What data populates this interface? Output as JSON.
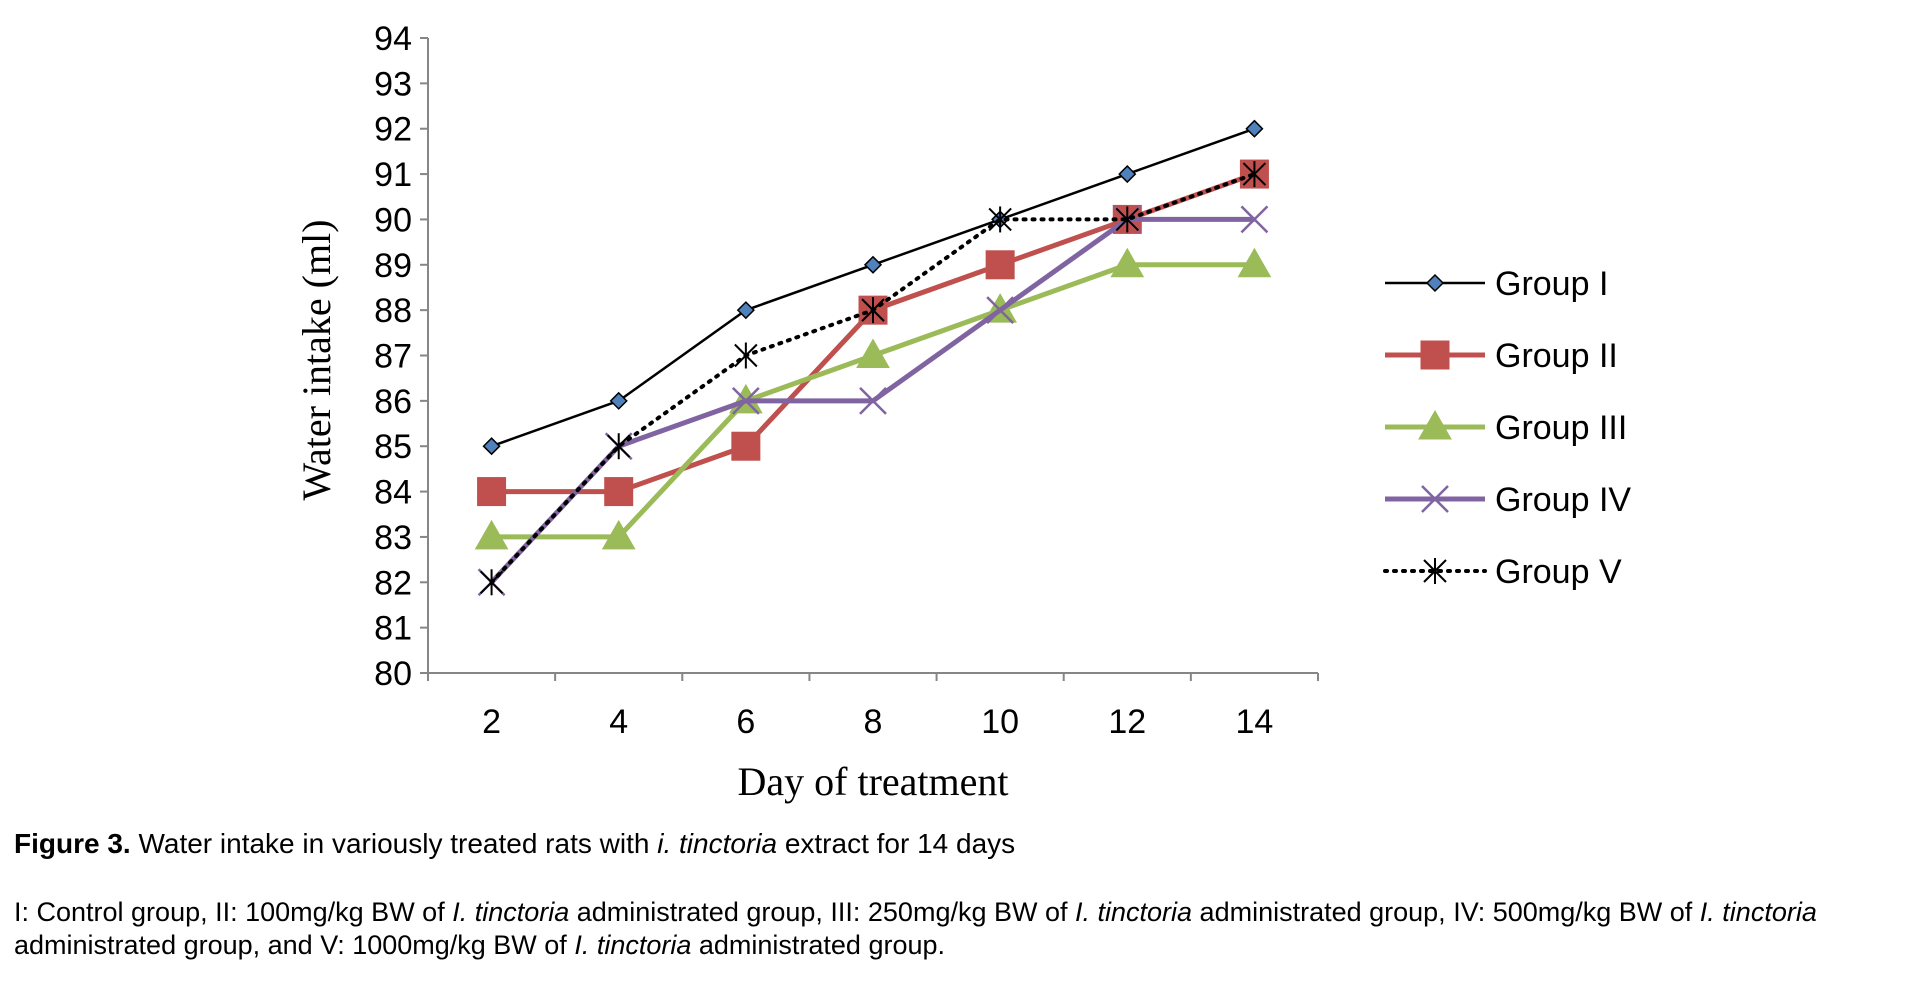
{
  "chart_data": {
    "type": "line",
    "xlabel": "Day of treatment",
    "ylabel": "Water intake (ml)",
    "x": [
      2,
      4,
      6,
      8,
      10,
      12,
      14
    ],
    "ylim": [
      80,
      94
    ],
    "yticks": [
      80,
      81,
      82,
      83,
      84,
      85,
      86,
      87,
      88,
      89,
      90,
      91,
      92,
      93,
      94
    ],
    "grid": false,
    "legend_position": "right",
    "series": [
      {
        "name": "Group I",
        "values": [
          85,
          86,
          88,
          89,
          90,
          91,
          92
        ],
        "color": "#000000",
        "marker": "diamond",
        "marker_fill": "#4F81BD",
        "style": "solid"
      },
      {
        "name": "Group II",
        "values": [
          84,
          84,
          85,
          88,
          89,
          90,
          91
        ],
        "color": "#C0504D",
        "marker": "square",
        "marker_fill": "#C0504D",
        "style": "solid"
      },
      {
        "name": "Group III",
        "values": [
          83,
          83,
          86,
          87,
          88,
          89,
          89
        ],
        "color": "#9BBB59",
        "marker": "triangle",
        "marker_fill": "#9BBB59",
        "style": "solid"
      },
      {
        "name": "Group IV",
        "values": [
          82,
          85,
          86,
          86,
          88,
          90,
          90
        ],
        "color": "#8064A2",
        "marker": "x",
        "marker_fill": "#8064A2",
        "style": "solid"
      },
      {
        "name": "Group V",
        "values": [
          82,
          85,
          87,
          88,
          90,
          90,
          91
        ],
        "color": "#000000",
        "marker": "star",
        "marker_fill": "#000000",
        "style": "dotted"
      }
    ]
  },
  "caption": {
    "label": "Figure 3.",
    "text_before": " Water intake in variously treated rats with ",
    "species": "i. tinctoria",
    "text_after": " extract for 14 days"
  },
  "note": {
    "p1": "I: Control group, II: 100mg/kg BW of ",
    "s1": "I. tinctoria",
    "p2": " administrated group, III: 250mg/kg BW of ",
    "s2": "I. tinctoria",
    "p3": " administrated group, IV: 500mg/kg BW of ",
    "s3": "I. tinctoria",
    "p4": " administrated group, and V: 1000mg/kg BW of ",
    "s4": "I. tinctoria",
    "p5": " administrated group."
  }
}
